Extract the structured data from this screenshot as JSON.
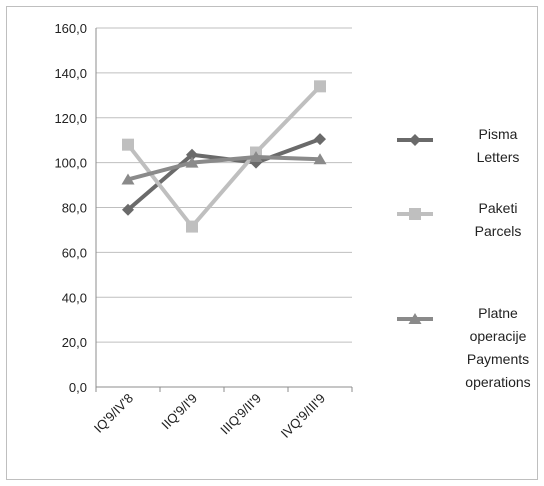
{
  "chart_data": {
    "type": "line",
    "title": "",
    "xlabel": "",
    "ylabel": "",
    "categories": [
      "IQ'9/IV'8",
      "IIQ'9/I'9",
      "IIIQ'9/II'9",
      "IVQ'9/III'9"
    ],
    "ylim": [
      0,
      160
    ],
    "yticks": [
      "0,0",
      "20,0",
      "40,0",
      "60,0",
      "80,0",
      "100,0",
      "120,0",
      "140,0",
      "160,0"
    ],
    "grid": true,
    "legend_position": "right",
    "series": [
      {
        "name_lines": [
          "Pisma",
          "Letters"
        ],
        "color": "#6a6a6a",
        "marker": "diamond",
        "values": [
          79,
          103.5,
          100,
          110.5
        ]
      },
      {
        "name_lines": [
          "Paketi",
          "Parcels"
        ],
        "color": "#bfbfbf",
        "marker": "square",
        "values": [
          108,
          71.5,
          104.5,
          134
        ]
      },
      {
        "name_lines": [
          "Platne",
          "operacije",
          "Payments",
          "operations"
        ],
        "color": "#8a8a8a",
        "marker": "triangle",
        "values": [
          92.5,
          100,
          102.5,
          101.5
        ]
      }
    ]
  }
}
